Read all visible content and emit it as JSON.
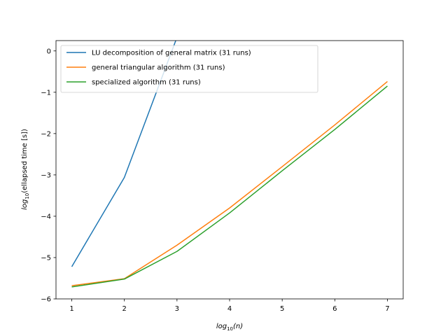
{
  "chart_data": {
    "type": "line",
    "title": "",
    "xlabel": {
      "base": "log",
      "sub": "10",
      "arg": "(n)"
    },
    "ylabel": {
      "base": "log",
      "sub": "10",
      "arg": "(ellapsed time [s])"
    },
    "xlim": [
      0.7,
      7.3
    ],
    "ylim": [
      -6,
      0.25
    ],
    "xticks": [
      1,
      2,
      3,
      4,
      5,
      6,
      7
    ],
    "yticks": [
      0,
      -1,
      -2,
      -3,
      -4,
      -5,
      -6
    ],
    "xtick_labels": [
      "1",
      "2",
      "3",
      "4",
      "5",
      "6",
      "7"
    ],
    "ytick_labels": [
      "0",
      "−1",
      "−2",
      "−3",
      "−4",
      "−5",
      "−6"
    ],
    "grid": false,
    "legend_position": "upper-left",
    "series": [
      {
        "name": "LU decomposition of general matrix (31 runs)",
        "color": "#1f77b4",
        "x": [
          1,
          2,
          3
        ],
        "y": [
          -5.22,
          -3.06,
          0.33
        ]
      },
      {
        "name": "general triangular algorithm (31 runs)",
        "color": "#ff7f0e",
        "x": [
          1,
          2,
          3,
          4,
          5,
          6,
          7
        ],
        "y": [
          -5.68,
          -5.51,
          -4.7,
          -3.8,
          -2.8,
          -1.79,
          -0.74
        ]
      },
      {
        "name": "specialized algorithm (31 runs)",
        "color": "#2ca02c",
        "x": [
          1,
          2,
          3,
          4,
          5,
          6,
          7
        ],
        "y": [
          -5.71,
          -5.52,
          -4.85,
          -3.92,
          -2.9,
          -1.9,
          -0.85
        ]
      }
    ]
  }
}
